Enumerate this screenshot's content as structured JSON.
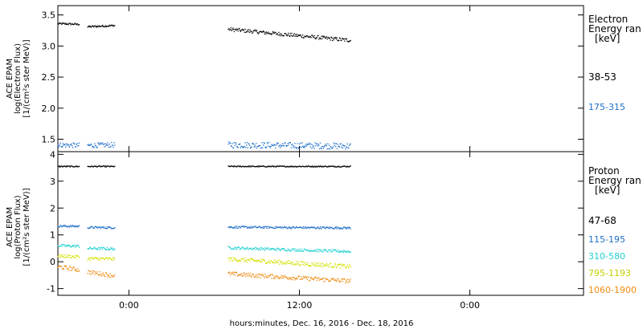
{
  "chart_data": [
    {
      "type": "scatter",
      "ylabel": [
        "ACE EPAM",
        "log(Electron Flux)",
        "[1/(cm²s ster MeV)]"
      ],
      "ylim": [
        1.3,
        3.65
      ],
      "yticks": [
        1.5,
        2.0,
        2.5,
        3.0,
        3.5
      ],
      "ytick_labels": [
        "1.5",
        "2.0",
        "2.5",
        "3.0",
        "3.5"
      ],
      "legend_title": [
        "Electron",
        "Energy ran",
        "[keV]"
      ],
      "series": [
        {
          "name": "38-53",
          "color": "#000000",
          "segments": [
            {
              "x": [
                -5.0,
                -3.5
              ],
              "y": [
                3.36,
                3.35
              ],
              "noise": 0.015
            },
            {
              "x": [
                -2.9,
                -1.0
              ],
              "y": [
                3.31,
                3.33
              ],
              "noise": 0.015
            },
            {
              "x": [
                7.0,
                15.6
              ],
              "y": [
                3.27,
                3.09
              ],
              "noise": 0.03
            }
          ]
        },
        {
          "name": "175-315",
          "color": "#1f6fc8",
          "segments": [
            {
              "x": [
                -5.0,
                -3.5
              ],
              "y": [
                1.41,
                1.4
              ],
              "noise": 0.04
            },
            {
              "x": [
                -2.9,
                -1.0
              ],
              "y": [
                1.4,
                1.41
              ],
              "noise": 0.04
            },
            {
              "x": [
                7.0,
                15.6
              ],
              "y": [
                1.41,
                1.39
              ],
              "noise": 0.05
            }
          ]
        }
      ]
    },
    {
      "type": "scatter",
      "ylabel": [
        "ACE EPAM",
        "log(Proton Flux)",
        "[1/(cm²s ster MeV)]"
      ],
      "ylim": [
        -1.25,
        4.1
      ],
      "yticks": [
        -1,
        0,
        1,
        2,
        3,
        4
      ],
      "ytick_labels": [
        "-1",
        "0",
        "1",
        "2",
        "3",
        "4"
      ],
      "legend_title": [
        "Proton",
        "Energy ran",
        "[keV]"
      ],
      "series": [
        {
          "name": "47-68",
          "color": "#000000",
          "segments": [
            {
              "x": [
                -5.0,
                -3.5
              ],
              "y": [
                3.55,
                3.55
              ],
              "noise": 0.02
            },
            {
              "x": [
                -2.9,
                -1.0
              ],
              "y": [
                3.55,
                3.55
              ],
              "noise": 0.02
            },
            {
              "x": [
                7.0,
                15.6
              ],
              "y": [
                3.55,
                3.55
              ],
              "noise": 0.02
            }
          ]
        },
        {
          "name": "115-195",
          "color": "#1f6fc8",
          "segments": [
            {
              "x": [
                -5.0,
                -3.5
              ],
              "y": [
                1.33,
                1.32
              ],
              "noise": 0.04
            },
            {
              "x": [
                -2.9,
                -1.0
              ],
              "y": [
                1.28,
                1.27
              ],
              "noise": 0.04
            },
            {
              "x": [
                7.0,
                15.6
              ],
              "y": [
                1.29,
                1.26
              ],
              "noise": 0.04
            }
          ]
        },
        {
          "name": "310-580",
          "color": "#22d0d0",
          "segments": [
            {
              "x": [
                -5.0,
                -3.5
              ],
              "y": [
                0.6,
                0.58
              ],
              "noise": 0.05
            },
            {
              "x": [
                -2.9,
                -1.0
              ],
              "y": [
                0.5,
                0.48
              ],
              "noise": 0.05
            },
            {
              "x": [
                7.0,
                15.6
              ],
              "y": [
                0.52,
                0.38
              ],
              "noise": 0.05
            }
          ]
        },
        {
          "name": "795-1193",
          "color": "#d4e000",
          "segments": [
            {
              "x": [
                -5.0,
                -3.5
              ],
              "y": [
                0.22,
                0.18
              ],
              "noise": 0.06
            },
            {
              "x": [
                -2.9,
                -1.0
              ],
              "y": [
                0.12,
                0.1
              ],
              "noise": 0.06
            },
            {
              "x": [
                7.0,
                15.6
              ],
              "y": [
                0.1,
                -0.18
              ],
              "noise": 0.08
            }
          ]
        },
        {
          "name": "1060-1900",
          "color": "#ee8a10",
          "segments": [
            {
              "x": [
                -5.0,
                -3.5
              ],
              "y": [
                -0.18,
                -0.3
              ],
              "noise": 0.08
            },
            {
              "x": [
                -2.9,
                -1.0
              ],
              "y": [
                -0.38,
                -0.52
              ],
              "noise": 0.08
            },
            {
              "x": [
                7.0,
                15.6
              ],
              "y": [
                -0.45,
                -0.72
              ],
              "noise": 0.08
            }
          ]
        }
      ]
    }
  ],
  "x_axis": {
    "xlim": [
      -5.0,
      32.0
    ],
    "tick_values": [
      0,
      12,
      24
    ],
    "tick_labels": [
      "0:00",
      "12:00",
      "0:00"
    ],
    "xlabel": "hours:minutes, Dec. 16, 2016 - Dec. 18, 2016"
  }
}
